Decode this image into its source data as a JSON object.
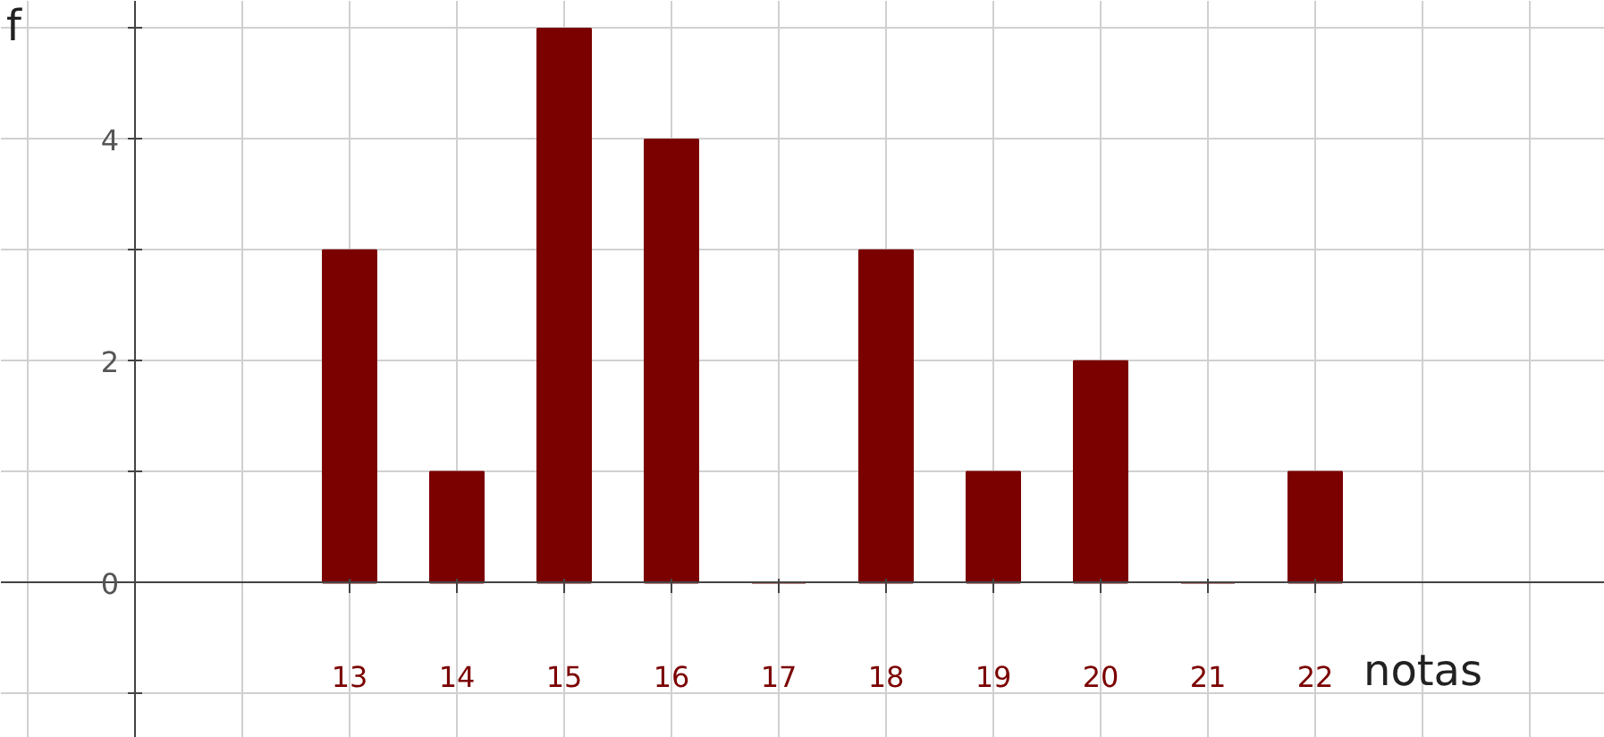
{
  "chart_data": {
    "type": "bar",
    "xlabel": "notas",
    "ylabel": "f",
    "x": [
      13,
      14,
      15,
      16,
      17,
      18,
      19,
      20,
      21,
      22
    ],
    "values": [
      3,
      1,
      5,
      4,
      0,
      3,
      1,
      2,
      0,
      1
    ],
    "color": "#7b0000",
    "xlim": [
      9.75,
      24.7
    ],
    "ylim": [
      -1.4,
      5.25
    ],
    "xticks": [
      13,
      14,
      15,
      16,
      17,
      18,
      19,
      20,
      21,
      22
    ],
    "yticks": [
      {
        "value": -1,
        "label": null
      },
      0,
      {
        "value": 1,
        "label": null
      },
      2,
      {
        "value": 3,
        "label": null
      },
      4,
      {
        "value": 5,
        "label": null
      }
    ],
    "grid": true
  }
}
